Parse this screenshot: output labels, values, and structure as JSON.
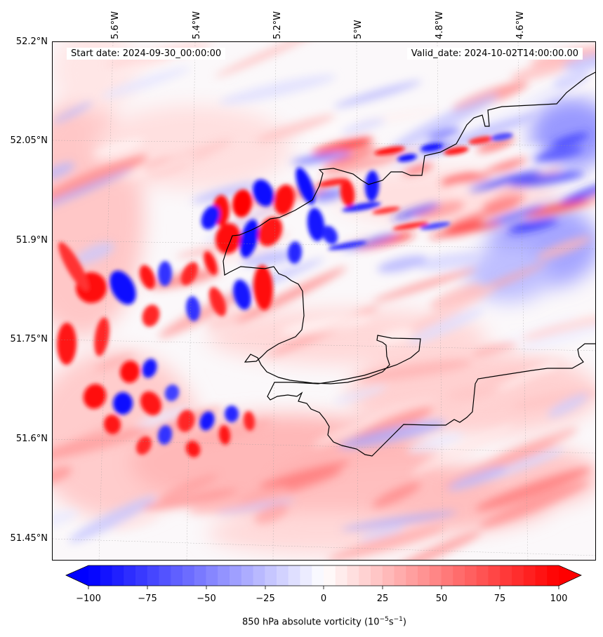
{
  "header": {
    "start_date": "Start date: 2024-09-30_00:00:00",
    "valid_date": "Valid_date: 2024-10-02T14:00:00.00"
  },
  "axes": {
    "lat_labels": [
      "52.2°N",
      "52.05°N",
      "51.9°N",
      "51.75°N",
      "51.6°N",
      "51.45°N"
    ],
    "lon_labels": [
      "5.6°W",
      "5.4°W",
      "5.2°W",
      "5°W",
      "4.8°W",
      "4.6°W"
    ]
  },
  "colorbar": {
    "ticks": [
      "−100",
      "−75",
      "−50",
      "−25",
      "0",
      "25",
      "50",
      "75",
      "100"
    ],
    "title_main": "850 hPa absolute vorticity (10",
    "title_exp1": "−5",
    "title_mid": "s",
    "title_exp2": "−1",
    "title_end": ")",
    "range": [
      -100,
      100
    ],
    "colormap": "bwr",
    "extend": "both"
  },
  "colors": {
    "negative": "#0000ff",
    "positive": "#ff0000",
    "neutral": "#ffffff",
    "coastline": "#000000"
  }
}
